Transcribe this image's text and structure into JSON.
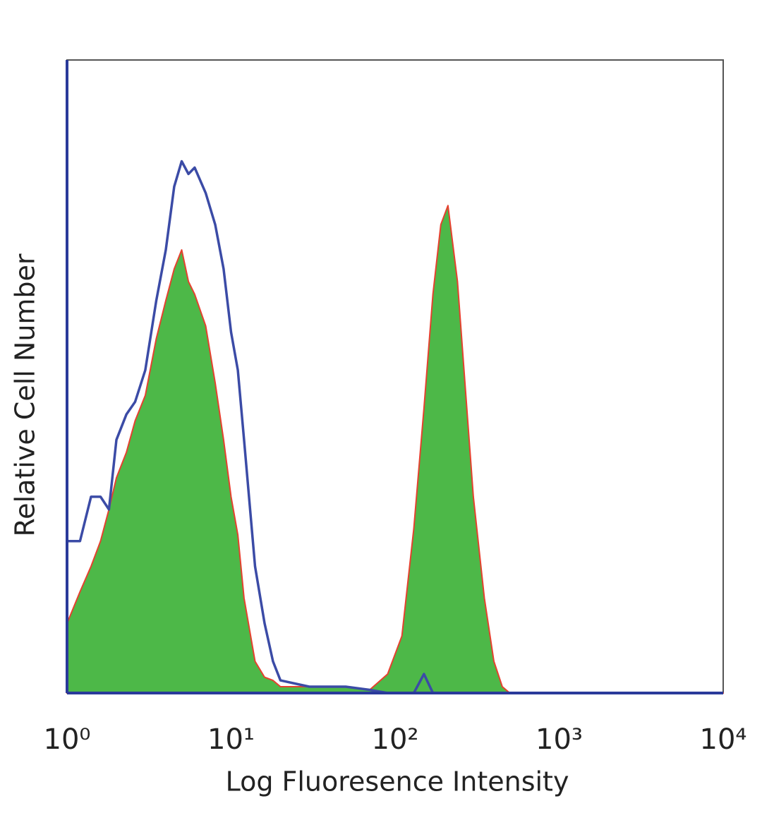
{
  "chart_data": {
    "type": "histogram-overlay",
    "x_label": "Log Fluoresence Intensity",
    "y_label": "Relative Cell Number",
    "xscale": "log",
    "xlim": [
      1,
      10000
    ],
    "xticks": [
      {
        "value": 1,
        "label": "10⁰"
      },
      {
        "value": 10,
        "label": "10¹"
      },
      {
        "value": 100,
        "label": "10²"
      },
      {
        "value": 1000,
        "label": "10³"
      },
      {
        "value": 10000,
        "label": "10⁴"
      }
    ],
    "ylim": [
      0,
      100
    ],
    "x": [
      1,
      1.2,
      1.4,
      1.6,
      1.8,
      2,
      2.3,
      2.6,
      3,
      3.5,
      4,
      4.5,
      5,
      5.5,
      6,
      7,
      8,
      9,
      10,
      11,
      12,
      14,
      16,
      18,
      20,
      30,
      50,
      70,
      90,
      110,
      130,
      150,
      170,
      190,
      210,
      240,
      270,
      300,
      350,
      400,
      450,
      500,
      1000,
      10000
    ],
    "series": [
      {
        "color": "#4db848",
        "edgecolor": "#e5412f",
        "filled": true,
        "values": [
          11,
          16,
          20,
          24,
          29,
          34,
          38,
          43,
          47,
          56,
          62,
          67,
          70,
          65,
          63,
          58,
          49,
          40,
          31,
          25,
          15,
          5,
          2.5,
          2,
          1,
          1,
          1,
          0.5,
          3,
          9,
          26,
          45,
          63,
          74,
          77,
          65,
          47,
          31,
          15,
          5,
          1,
          0,
          0,
          0
        ]
      },
      {
        "color": "#3b4ba6",
        "edgecolor": "#3b4ba6",
        "filled": false,
        "values": [
          24,
          24,
          31,
          31,
          29,
          40,
          44,
          46,
          51,
          62,
          70,
          80,
          84,
          82,
          83,
          79,
          74,
          67,
          57,
          51,
          40,
          20,
          11,
          5,
          2,
          1,
          1,
          0.5,
          0,
          0,
          0,
          3,
          0,
          0,
          0,
          0,
          0,
          0,
          0,
          0,
          0,
          0,
          0,
          0
        ]
      }
    ]
  }
}
